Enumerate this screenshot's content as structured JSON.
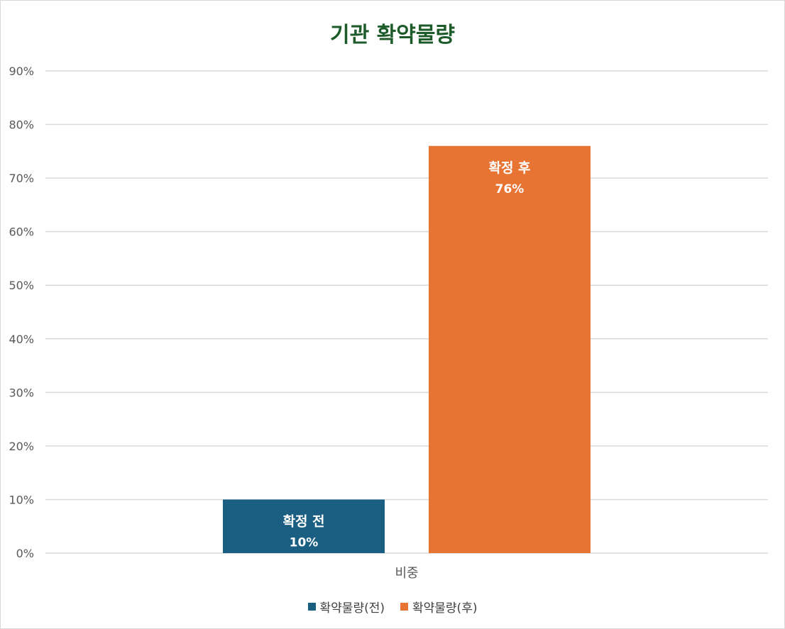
{
  "chart_data": {
    "type": "bar",
    "title": "기관 확약물량",
    "categories": [
      "비중"
    ],
    "series": [
      {
        "name": "확약물량(전)",
        "values": [
          0.1
        ],
        "color": "#1a5e82",
        "data_label_name": "확정 전",
        "data_label_value": "10%"
      },
      {
        "name": "확약물량(후)",
        "values": [
          0.76
        ],
        "color": "#e87434",
        "data_label_name": "확정 후",
        "data_label_value": "76%"
      }
    ],
    "ylim": [
      0,
      0.9
    ],
    "yticks": [
      0,
      0.1,
      0.2,
      0.3,
      0.4,
      0.5,
      0.6,
      0.7,
      0.8,
      0.9
    ],
    "ytick_labels": [
      "0%",
      "10%",
      "20%",
      "30%",
      "40%",
      "50%",
      "60%",
      "70%",
      "80%",
      "90%"
    ],
    "grid": true,
    "legend_position": "bottom"
  }
}
